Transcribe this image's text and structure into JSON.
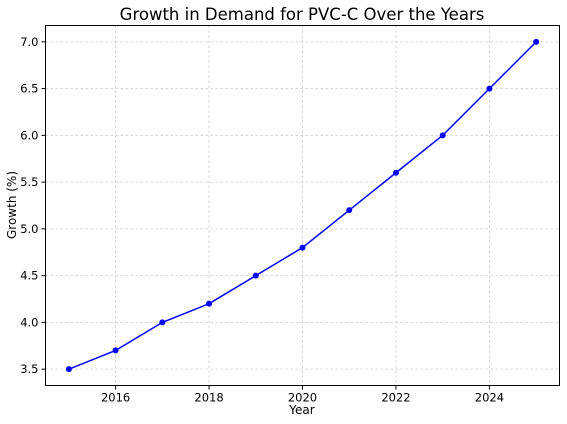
{
  "chart_data": {
    "type": "line",
    "title": "Growth in Demand for PVC-C Over the Years",
    "xlabel": "Year",
    "ylabel": "Growth (%)",
    "x": [
      2015,
      2016,
      2017,
      2018,
      2019,
      2020,
      2021,
      2022,
      2023,
      2024,
      2025
    ],
    "series": [
      {
        "values": [
          3.5,
          3.7,
          4.0,
          4.2,
          4.5,
          4.8,
          5.2,
          5.6,
          6.0,
          6.5,
          7.0
        ]
      }
    ],
    "xticks": [
      2016,
      2018,
      2020,
      2022,
      2024
    ],
    "yticks": [
      3.5,
      4.0,
      4.5,
      5.0,
      5.5,
      6.0,
      6.5,
      7.0
    ],
    "xlim": [
      2014.5,
      2025.5
    ],
    "ylim": [
      3.325,
      7.175
    ],
    "grid": true,
    "line_color": "#0000ff",
    "marker": "circle"
  }
}
